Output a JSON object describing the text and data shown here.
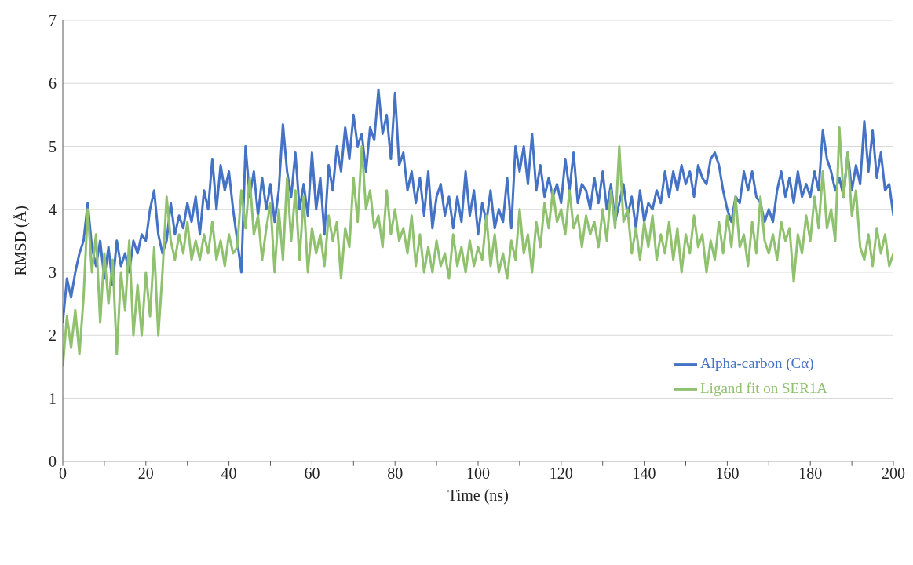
{
  "chart_data": {
    "type": "line",
    "xlabel": "Time (ns)",
    "ylabel": "RMSD (Å)",
    "x": [
      0,
      1,
      2,
      3,
      4,
      5,
      6,
      7,
      8,
      9,
      10,
      11,
      12,
      13,
      14,
      15,
      16,
      17,
      18,
      19,
      20,
      21,
      22,
      23,
      24,
      25,
      26,
      27,
      28,
      29,
      30,
      31,
      32,
      33,
      34,
      35,
      36,
      37,
      38,
      39,
      40,
      41,
      42,
      43,
      44,
      45,
      46,
      47,
      48,
      49,
      50,
      51,
      52,
      53,
      54,
      55,
      56,
      57,
      58,
      59,
      60,
      61,
      62,
      63,
      64,
      65,
      66,
      67,
      68,
      69,
      70,
      71,
      72,
      73,
      74,
      75,
      76,
      77,
      78,
      79,
      80,
      81,
      82,
      83,
      84,
      85,
      86,
      87,
      88,
      89,
      90,
      91,
      92,
      93,
      94,
      95,
      96,
      97,
      98,
      99,
      100,
      101,
      102,
      103,
      104,
      105,
      106,
      107,
      108,
      109,
      110,
      111,
      112,
      113,
      114,
      115,
      116,
      117,
      118,
      119,
      120,
      121,
      122,
      123,
      124,
      125,
      126,
      127,
      128,
      129,
      130,
      131,
      132,
      133,
      134,
      135,
      136,
      137,
      138,
      139,
      140,
      141,
      142,
      143,
      144,
      145,
      146,
      147,
      148,
      149,
      150,
      151,
      152,
      153,
      154,
      155,
      156,
      157,
      158,
      159,
      160,
      161,
      162,
      163,
      164,
      165,
      166,
      167,
      168,
      169,
      170,
      171,
      172,
      173,
      174,
      175,
      176,
      177,
      178,
      179,
      180,
      181,
      182,
      183,
      184,
      185,
      186,
      187,
      188,
      189,
      190,
      191,
      192,
      193,
      194,
      195,
      196,
      197,
      198,
      199,
      200
    ],
    "series": [
      {
        "name": "Alpha-carbon (Cα)",
        "color": "#4472c4",
        "values": [
          2.2,
          2.9,
          2.6,
          3.0,
          3.3,
          3.5,
          4.1,
          3.4,
          3.1,
          3.5,
          2.9,
          3.4,
          2.8,
          3.5,
          3.1,
          3.3,
          3.0,
          3.5,
          3.3,
          3.6,
          3.5,
          4.0,
          4.3,
          3.6,
          3.3,
          3.5,
          4.1,
          3.6,
          3.9,
          3.7,
          4.1,
          3.8,
          4.2,
          3.6,
          4.3,
          4.0,
          4.8,
          4.0,
          4.7,
          4.3,
          4.6,
          4.0,
          3.5,
          3.0,
          5.0,
          4.2,
          4.6,
          3.9,
          4.5,
          4.0,
          4.4,
          3.8,
          4.3,
          5.35,
          4.6,
          4.2,
          4.9,
          4.0,
          4.4,
          3.9,
          4.9,
          4.0,
          4.5,
          3.6,
          4.7,
          4.3,
          5.0,
          4.6,
          5.3,
          4.8,
          5.5,
          5.0,
          5.2,
          4.6,
          5.3,
          5.1,
          5.9,
          5.2,
          5.5,
          4.8,
          5.85,
          4.7,
          4.9,
          4.3,
          4.6,
          4.1,
          4.5,
          3.9,
          4.6,
          3.7,
          4.2,
          4.4,
          3.9,
          4.2,
          3.7,
          4.2,
          3.8,
          4.6,
          3.9,
          4.3,
          3.6,
          4.1,
          3.8,
          4.3,
          3.7,
          4.0,
          3.8,
          4.5,
          3.7,
          5.0,
          4.6,
          5.0,
          4.4,
          5.2,
          4.3,
          4.7,
          4.2,
          4.5,
          4.2,
          4.4,
          4.1,
          4.8,
          4.3,
          4.9,
          4.1,
          4.4,
          4.3,
          4.0,
          4.5,
          4.1,
          4.6,
          4.0,
          4.4,
          3.8,
          4.1,
          4.4,
          3.9,
          4.2,
          3.7,
          4.3,
          3.8,
          4.1,
          4.0,
          4.3,
          4.1,
          4.6,
          4.2,
          4.6,
          4.3,
          4.7,
          4.4,
          4.6,
          4.2,
          4.7,
          4.5,
          4.4,
          4.8,
          4.9,
          4.7,
          4.3,
          4.0,
          3.8,
          4.2,
          4.1,
          4.6,
          4.3,
          4.6,
          4.2,
          4.1,
          3.8,
          4.0,
          3.8,
          4.3,
          4.6,
          4.2,
          4.5,
          4.1,
          4.6,
          4.2,
          4.4,
          4.2,
          4.6,
          4.3,
          5.25,
          4.8,
          4.6,
          4.3,
          4.5,
          4.2,
          4.9,
          4.3,
          4.7,
          4.4,
          5.4,
          4.6,
          5.25,
          4.5,
          4.9,
          4.3,
          4.4,
          3.9
        ]
      },
      {
        "name": "Ligand fit on SER1A",
        "color": "#8fc16f",
        "values": [
          1.5,
          2.3,
          1.8,
          2.4,
          1.7,
          2.6,
          4.0,
          3.0,
          3.6,
          2.2,
          3.3,
          2.5,
          3.2,
          1.7,
          3.0,
          2.4,
          3.5,
          2.0,
          2.8,
          2.0,
          3.0,
          2.3,
          3.4,
          2.0,
          3.0,
          4.2,
          3.5,
          3.2,
          3.6,
          3.3,
          3.8,
          3.2,
          3.5,
          3.2,
          3.6,
          3.3,
          3.8,
          3.2,
          3.5,
          3.1,
          3.6,
          3.3,
          3.4,
          4.3,
          3.7,
          4.5,
          3.6,
          3.9,
          3.2,
          3.7,
          4.1,
          3.0,
          4.0,
          3.2,
          4.5,
          3.5,
          4.3,
          3.2,
          4.2,
          3.0,
          3.7,
          3.3,
          3.6,
          3.1,
          3.9,
          3.5,
          3.8,
          2.9,
          3.7,
          3.4,
          4.5,
          3.8,
          5.0,
          4.0,
          4.3,
          3.7,
          3.9,
          3.4,
          4.3,
          3.6,
          4.0,
          3.5,
          3.7,
          3.3,
          3.9,
          3.1,
          3.6,
          3.0,
          3.4,
          3.0,
          3.5,
          3.1,
          3.3,
          2.9,
          3.6,
          3.1,
          3.4,
          3.0,
          3.5,
          3.1,
          3.4,
          3.2,
          3.9,
          3.1,
          3.6,
          3.0,
          3.3,
          2.9,
          3.5,
          3.2,
          4.0,
          3.3,
          3.6,
          3.0,
          3.8,
          3.4,
          4.1,
          3.7,
          4.3,
          3.8,
          4.0,
          3.6,
          4.3,
          3.7,
          3.9,
          3.4,
          3.9,
          3.6,
          3.8,
          3.4,
          4.0,
          3.5,
          4.3,
          3.7,
          5.0,
          3.8,
          4.0,
          3.3,
          3.7,
          3.2,
          3.8,
          3.4,
          3.9,
          3.2,
          3.6,
          3.3,
          3.8,
          3.2,
          3.7,
          3.0,
          3.6,
          3.3,
          3.9,
          3.4,
          3.6,
          3.0,
          3.5,
          3.2,
          3.8,
          3.3,
          3.9,
          3.4,
          4.2,
          3.4,
          3.6,
          3.1,
          3.8,
          3.3,
          4.2,
          3.5,
          3.3,
          3.6,
          3.2,
          3.8,
          3.5,
          3.7,
          2.85,
          3.6,
          3.3,
          3.9,
          3.5,
          4.2,
          3.7,
          4.6,
          3.7,
          4.0,
          3.5,
          5.3,
          4.2,
          4.9,
          3.9,
          4.3,
          3.4,
          3.2,
          3.6,
          3.1,
          3.7,
          3.3,
          3.6,
          3.1,
          3.3
        ]
      }
    ],
    "xlim": [
      0,
      200
    ],
    "xticks": [
      0,
      {
        "value": 10,
        "label": null
      },
      20,
      {
        "value": 30,
        "label": null
      },
      40,
      {
        "value": 50,
        "label": null
      },
      60,
      {
        "value": 70,
        "label": null
      },
      80,
      {
        "value": 90,
        "label": null
      },
      100,
      {
        "value": 110,
        "label": null
      },
      120,
      {
        "value": 130,
        "label": null
      },
      140,
      {
        "value": 150,
        "label": null
      },
      160,
      {
        "value": 170,
        "label": null
      },
      180,
      {
        "value": 190,
        "label": null
      },
      200
    ],
    "ylim": [
      0,
      7
    ],
    "yticks": [
      0,
      1,
      2,
      3,
      4,
      5,
      6,
      7
    ],
    "grid": "y",
    "legend": "bottom right",
    "marker": "none",
    "line_style": "solid"
  }
}
